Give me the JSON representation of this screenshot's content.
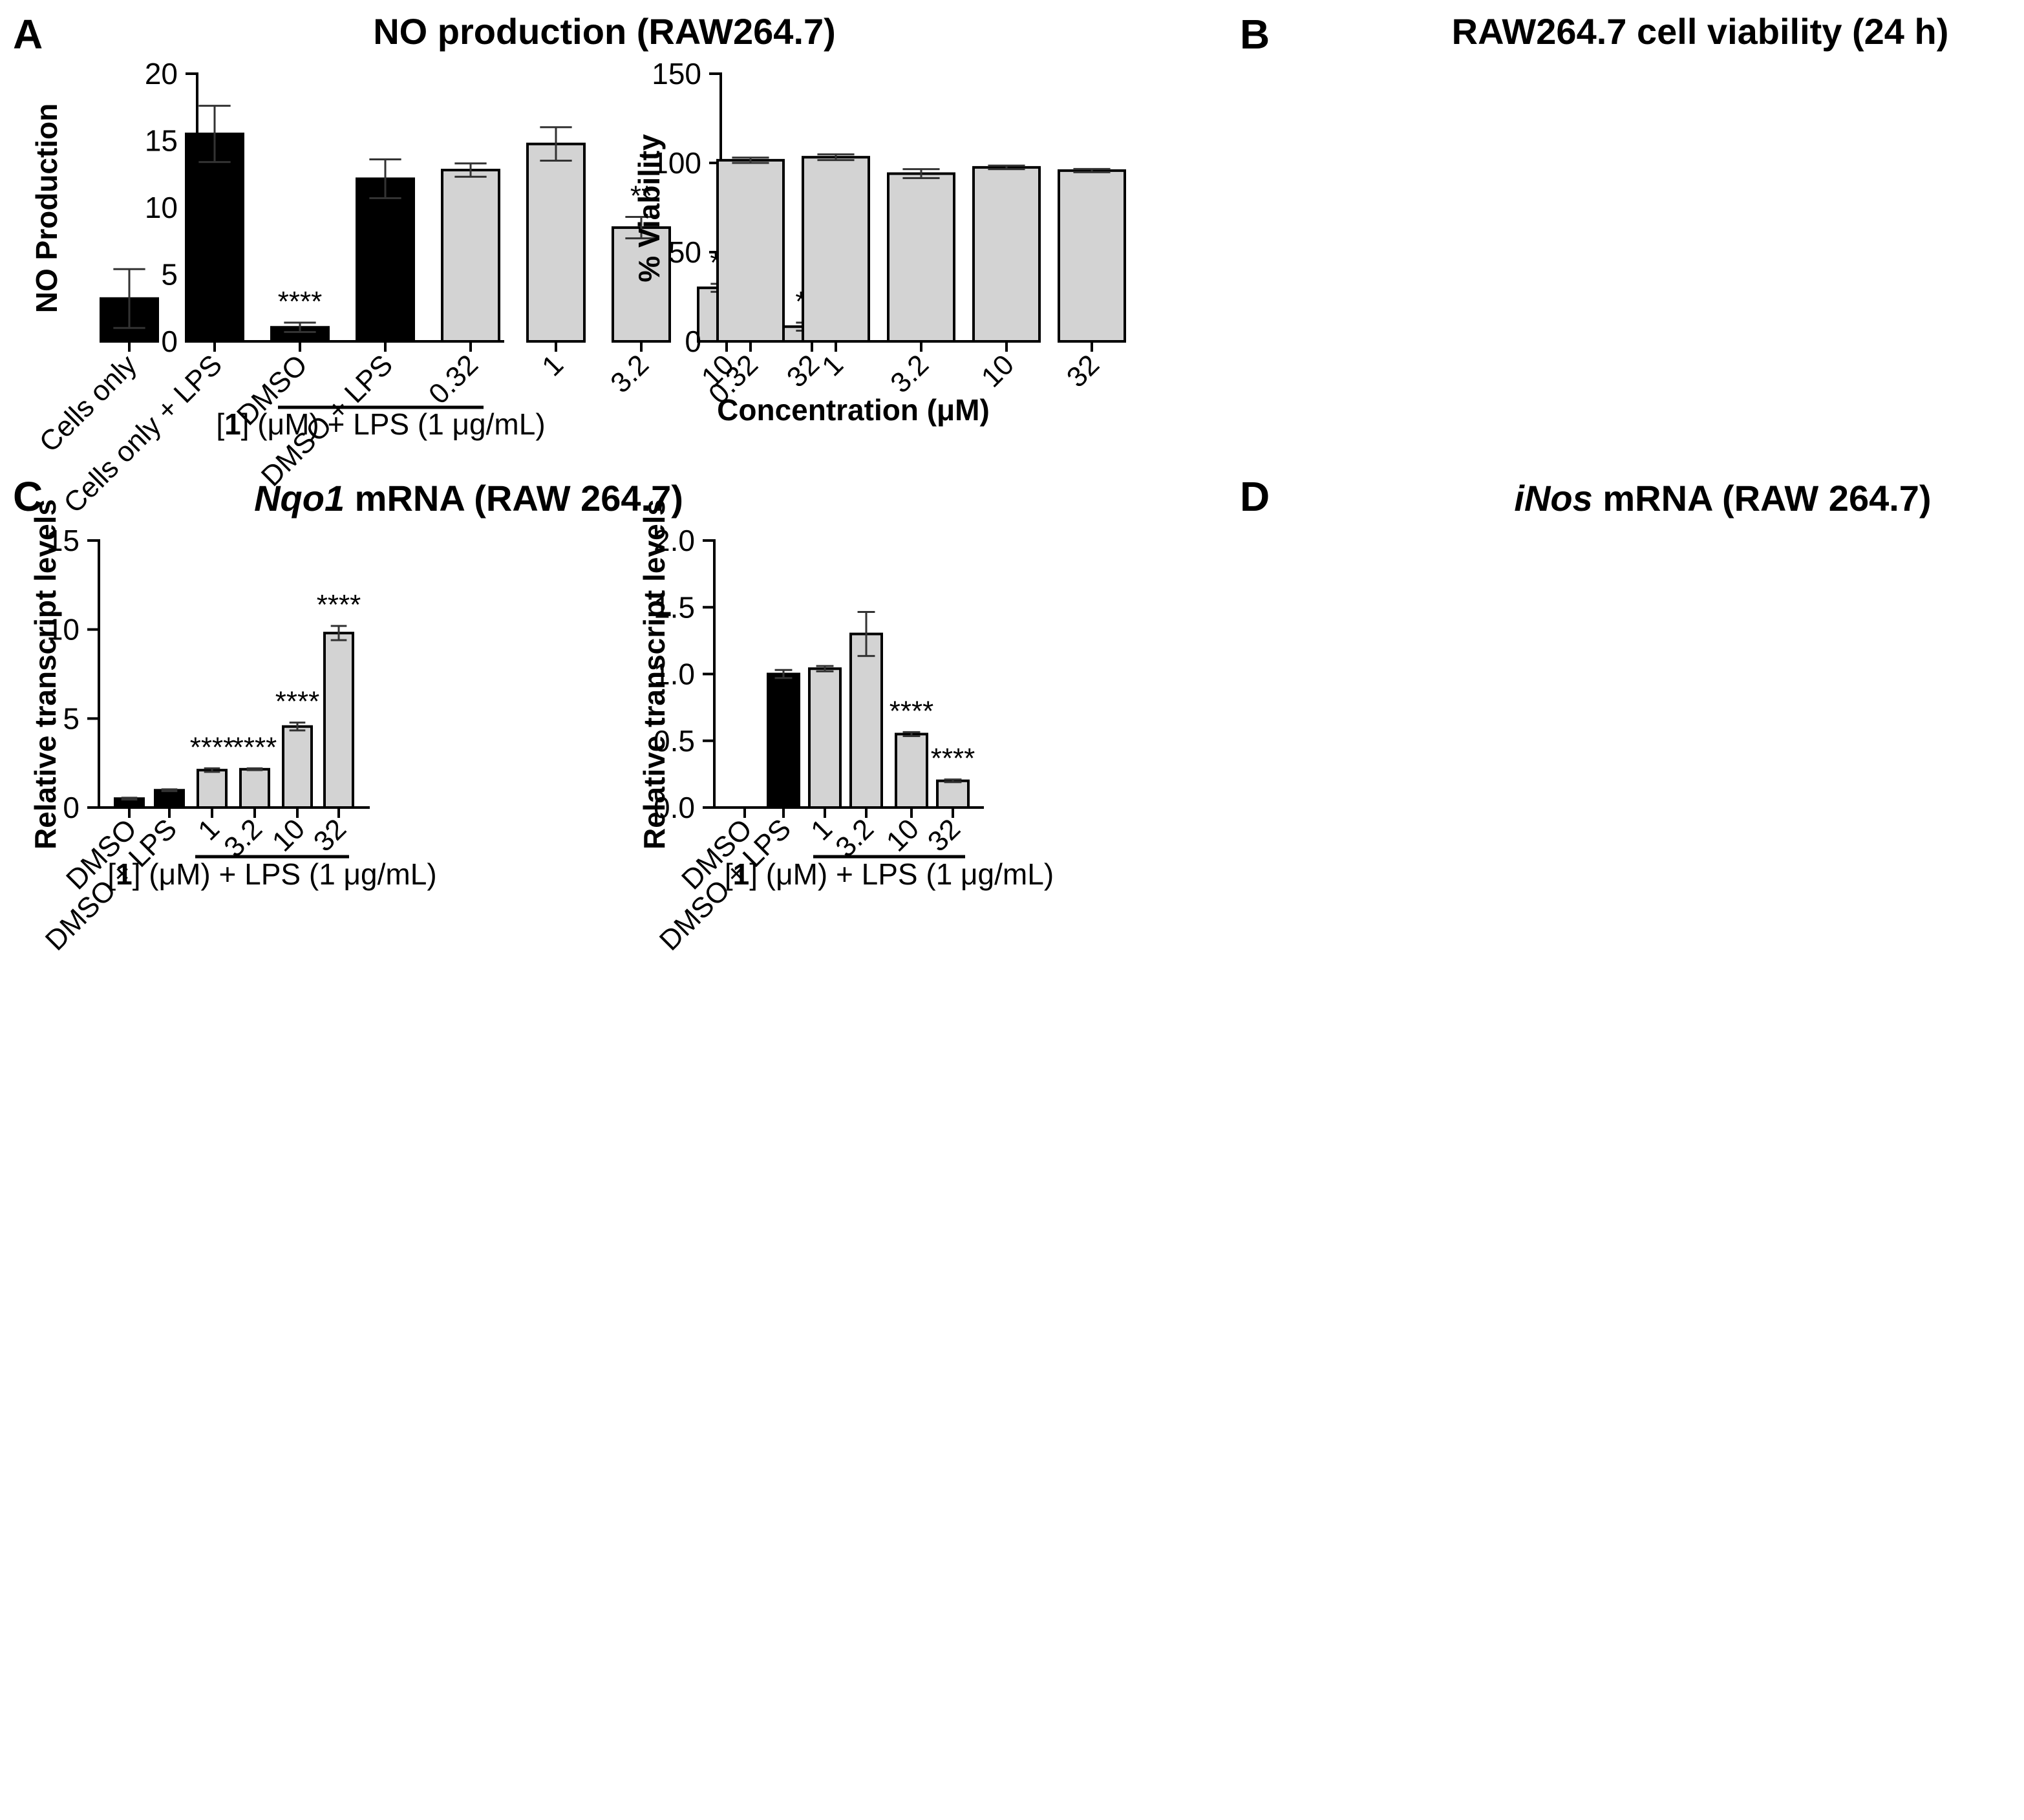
{
  "colors": {
    "black_bar": "#000000",
    "grey_bar": "#d3d3d3",
    "axis": "#000000",
    "error": "#333333"
  },
  "chart_data": [
    {
      "panel_label": "A",
      "type": "bar",
      "title": "NO production (RAW264.7)",
      "ylabel": "NO Production",
      "xlabel": "",
      "ylim": [
        0,
        20
      ],
      "yticks": [
        0,
        5,
        10,
        15,
        20
      ],
      "ytick_labels": [
        "0",
        "5",
        "10",
        "15",
        "20"
      ],
      "categories": [
        "Cells only",
        "Cells only + LPS",
        "DMSO",
        "DMSO + LPS",
        "0.32",
        "1",
        "3.2",
        "10",
        "32"
      ],
      "values": [
        3.2,
        15.5,
        1.05,
        12.15,
        12.8,
        14.75,
        8.5,
        4.0,
        1.1
      ],
      "errors": [
        2.2,
        2.1,
        0.35,
        1.45,
        0.5,
        1.25,
        0.8,
        0.3,
        0.3
      ],
      "fills": [
        "black",
        "black",
        "black",
        "black",
        "grey",
        "grey",
        "grey",
        "grey",
        "grey"
      ],
      "significance": [
        "",
        "",
        "****",
        "",
        "",
        "",
        "**",
        "***",
        "***"
      ],
      "group_label": {
        "prefix": "[",
        "bold": "1",
        "suffix": "] (μM) + LPS (1 μg/mL)",
        "first_index": 4,
        "last_index": 8
      }
    },
    {
      "panel_label": "B",
      "type": "bar",
      "title": "RAW264.7 cell viability (24 h)",
      "ylabel": "% Viability",
      "xlabel": "Concentration (μM)",
      "ylim": [
        0,
        150
      ],
      "yticks": [
        0,
        50,
        100,
        150
      ],
      "ytick_labels": [
        "0",
        "50",
        "100",
        "150"
      ],
      "categories": [
        "0.32",
        "1",
        "3.2",
        "10",
        "32"
      ],
      "values": [
        101.5,
        103.2,
        94.0,
        97.5,
        95.7
      ],
      "errors": [
        1.5,
        1.6,
        2.5,
        1.0,
        0.9
      ],
      "fills": [
        "grey",
        "grey",
        "grey",
        "grey",
        "grey"
      ],
      "significance": [
        "",
        "",
        "",
        "",
        ""
      ]
    },
    {
      "panel_label": "C",
      "type": "bar",
      "title_italic": "Nqo1",
      "title": " mRNA (RAW 264.7)",
      "ylabel": "Relative transcript levels",
      "xlabel": "",
      "ylim": [
        0,
        15
      ],
      "yticks": [
        0,
        5,
        10,
        15
      ],
      "ytick_labels": [
        "0",
        "5",
        "10",
        "15"
      ],
      "categories": [
        "DMSO",
        "DMSO + LPS",
        "1",
        "3.2",
        "10",
        "32"
      ],
      "values": [
        0.5,
        0.97,
        2.1,
        2.15,
        4.55,
        9.8
      ],
      "errors": [
        0.05,
        0.05,
        0.1,
        0.05,
        0.22,
        0.4
      ],
      "fills": [
        "black",
        "black",
        "grey",
        "grey",
        "grey",
        "grey"
      ],
      "significance": [
        "",
        "",
        "****",
        "****",
        "****",
        "****"
      ],
      "group_label": {
        "prefix": "[",
        "bold": "1",
        "suffix": "] (μM) + LPS (1 μg/mL)",
        "first_index": 2,
        "last_index": 5
      }
    },
    {
      "panel_label": "D",
      "type": "bar",
      "title_italic": "iNos",
      "title": " mRNA (RAW 264.7)",
      "ylabel": "Relative transcript levels",
      "xlabel": "",
      "ylim": [
        0,
        2.0
      ],
      "yticks": [
        0,
        0.5,
        1.0,
        1.5,
        2.0
      ],
      "ytick_labels": [
        "0.0",
        "0.5",
        "1.0",
        "1.5",
        "2.0"
      ],
      "categories": [
        "DMSO",
        "DMSO + LPS",
        "1",
        "3.2",
        "10",
        "32"
      ],
      "values": [
        0.0,
        1.0,
        1.04,
        1.3,
        0.55,
        0.2
      ],
      "errors": [
        0.0,
        0.03,
        0.02,
        0.165,
        0.015,
        0.01
      ],
      "fills": [
        "black",
        "black",
        "grey",
        "grey",
        "grey",
        "grey"
      ],
      "significance": [
        "",
        "",
        "",
        "",
        "****",
        "****"
      ],
      "group_label": {
        "prefix": "[",
        "bold": "1",
        "suffix": "] (μM) + LPS (1 μg/mL)",
        "first_index": 2,
        "last_index": 5
      }
    }
  ]
}
